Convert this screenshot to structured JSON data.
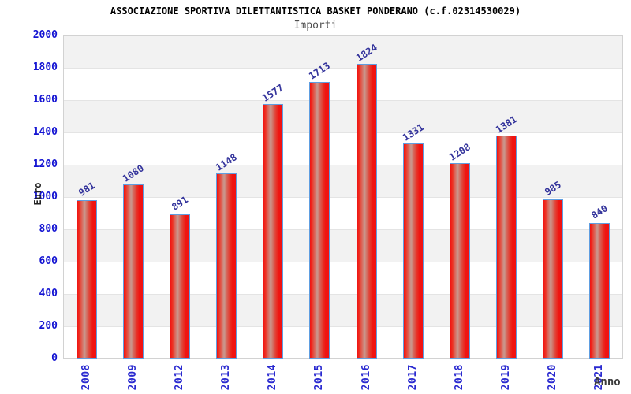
{
  "chart_data": {
    "type": "bar",
    "title": "ASSOCIAZIONE SPORTIVA DILETTANTISTICA BASKET PONDERANO (c.f.02314530029)",
    "subtitle": "Importi",
    "xlabel": "Anno",
    "ylabel": "Euro",
    "categories": [
      "2008",
      "2009",
      "2012",
      "2013",
      "2014",
      "2015",
      "2016",
      "2017",
      "2018",
      "2019",
      "2020",
      "2021"
    ],
    "values": [
      981,
      1080,
      891,
      1148,
      1577,
      1713,
      1824,
      1331,
      1208,
      1381,
      985,
      840
    ],
    "ylim": [
      0,
      2000
    ],
    "ytick_step": 200,
    "grid": "alternating-horizontal-bands",
    "legend": "none",
    "colors": {
      "bar_fill_edge": "#f11212",
      "bar_fill_highlight": "#c99a90",
      "bar_border": "#5f9ee1",
      "value_label": "#32329b",
      "y_tick_label": "#1414d2",
      "x_tick_label": "#2a2ad0",
      "band_gray": "#f2f2f2",
      "band_white": "#ffffff",
      "gridline": "#e4e4e4",
      "plot_border": "#d2d2d2",
      "title": "#000000",
      "subtitle": "#4d4d4d",
      "axis_title": "#222222"
    }
  }
}
